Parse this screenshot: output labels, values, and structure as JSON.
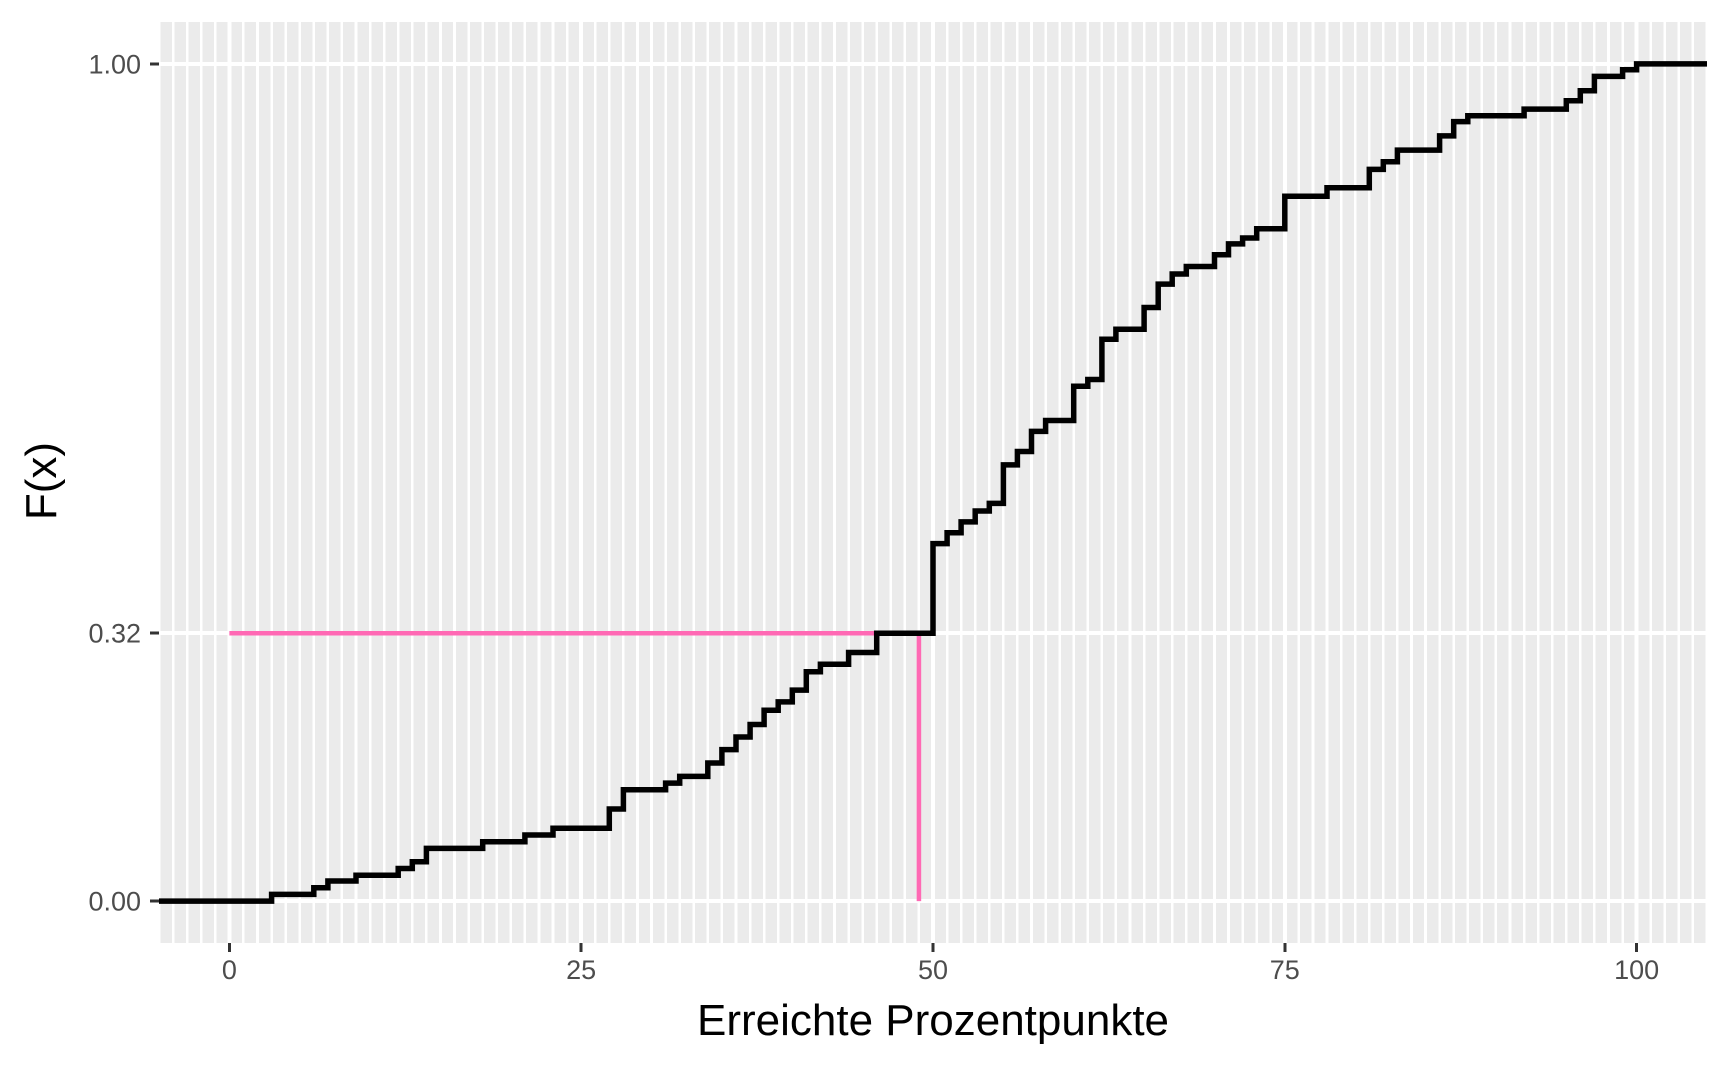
{
  "figure": {
    "xlabel": "Erreichte Prozentpunkte",
    "ylabel": "F(x)"
  },
  "chart_data": {
    "type": "line",
    "subtype": "ecdf-step",
    "title": "",
    "xlabel": "Erreichte Prozentpunkte",
    "ylabel": "F(x)",
    "xlim": [
      -5,
      105
    ],
    "ylim": [
      -0.05,
      1.05
    ],
    "x_ticks": [
      {
        "value": 0,
        "label": "0"
      },
      {
        "value": 25,
        "label": "25"
      },
      {
        "value": 50,
        "label": "50"
      },
      {
        "value": 75,
        "label": "75"
      },
      {
        "value": 100,
        "label": "100"
      }
    ],
    "y_ticks": [
      {
        "value": 0.0,
        "label": "0.00"
      },
      {
        "value": 0.32,
        "label": "0.32"
      },
      {
        "value": 1.0,
        "label": "1.00"
      }
    ],
    "x_minor_grid_step": 1,
    "grid": "on",
    "legend_position": "none",
    "ecdf_steps": [
      [
        -5,
        0
      ],
      [
        3,
        0.008
      ],
      [
        6,
        0.016
      ],
      [
        7,
        0.024
      ],
      [
        9,
        0.031
      ],
      [
        12,
        0.039
      ],
      [
        13,
        0.047
      ],
      [
        14,
        0.063
      ],
      [
        18,
        0.071
      ],
      [
        21,
        0.079
      ],
      [
        23,
        0.087
      ],
      [
        27,
        0.11
      ],
      [
        28,
        0.133
      ],
      [
        31,
        0.141
      ],
      [
        32,
        0.149
      ],
      [
        34,
        0.165
      ],
      [
        35,
        0.181
      ],
      [
        36,
        0.196
      ],
      [
        37,
        0.211
      ],
      [
        38,
        0.228
      ],
      [
        39,
        0.238
      ],
      [
        40,
        0.252
      ],
      [
        41,
        0.274
      ],
      [
        42,
        0.283
      ],
      [
        44,
        0.297
      ],
      [
        46,
        0.32
      ],
      [
        50,
        0.427
      ],
      [
        51,
        0.44
      ],
      [
        52,
        0.453
      ],
      [
        53,
        0.466
      ],
      [
        54,
        0.475
      ],
      [
        55,
        0.521
      ],
      [
        56,
        0.537
      ],
      [
        57,
        0.561
      ],
      [
        58,
        0.574
      ],
      [
        60,
        0.615
      ],
      [
        61,
        0.623
      ],
      [
        62,
        0.671
      ],
      [
        63,
        0.683
      ],
      [
        65,
        0.709
      ],
      [
        66,
        0.737
      ],
      [
        67,
        0.749
      ],
      [
        68,
        0.758
      ],
      [
        70,
        0.772
      ],
      [
        71,
        0.785
      ],
      [
        72,
        0.792
      ],
      [
        73,
        0.803
      ],
      [
        75,
        0.842
      ],
      [
        78,
        0.852
      ],
      [
        81,
        0.874
      ],
      [
        82,
        0.883
      ],
      [
        83,
        0.897
      ],
      [
        86,
        0.914
      ],
      [
        87,
        0.931
      ],
      [
        88,
        0.938
      ],
      [
        92,
        0.946
      ],
      [
        95,
        0.956
      ],
      [
        96,
        0.968
      ],
      [
        97,
        0.985
      ],
      [
        99,
        0.993
      ],
      [
        100,
        1
      ],
      [
        105,
        1
      ]
    ],
    "quantile_annotation": {
      "probability": 0.32,
      "quantile_x": 49,
      "hline": {
        "y": 0.32,
        "x_from": 0,
        "x_to": 46
      },
      "vline": {
        "x": 49,
        "y_from": 0,
        "y_to": 0.32
      }
    },
    "colors": {
      "panel_background": "#EBEBEB",
      "grid_major": "#FFFFFF",
      "grid_minor": "#FFFFFF",
      "ecdf_line": "#000000",
      "quantile_line": "#FF69B4",
      "tick_mark": "#333333",
      "tick_label": "#4D4D4D",
      "axis_title": "#000000"
    }
  }
}
